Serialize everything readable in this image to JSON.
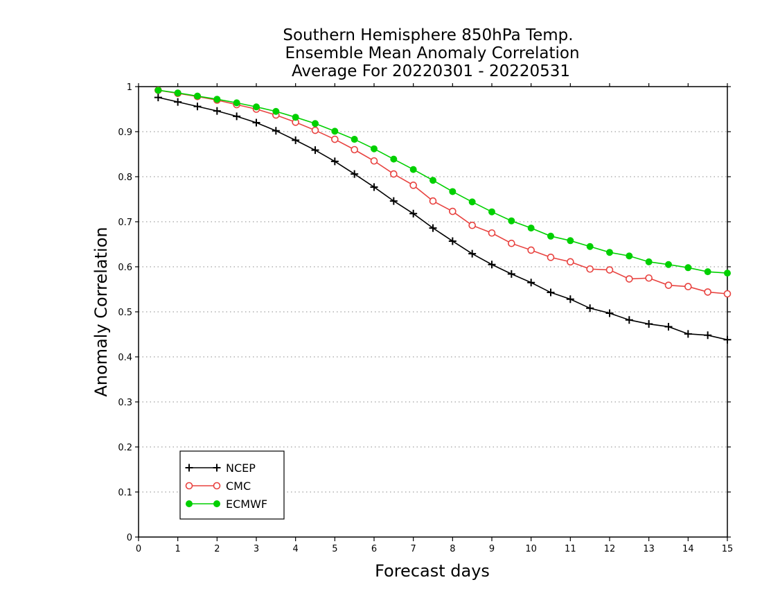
{
  "chart_data": {
    "type": "line",
    "title": [
      "Southern Hemisphere 850hPa Temp.",
      "Ensemble Mean Anomaly Correlation",
      "Average For 20220301 - 20220531"
    ],
    "xlabel": "Forecast days",
    "ylabel": "Anomaly Correlation",
    "xlim": [
      0,
      15
    ],
    "ylim": [
      0,
      1
    ],
    "xticks": [
      0,
      1,
      2,
      3,
      4,
      5,
      6,
      7,
      8,
      9,
      10,
      11,
      12,
      13,
      14,
      15
    ],
    "xtick_labels": [
      "0",
      "1",
      "2",
      "3",
      "4",
      "5",
      "6",
      "7",
      "8",
      "9",
      "10",
      "11",
      "12",
      "13",
      "14",
      "15"
    ],
    "yticks": [
      0,
      0.1,
      0.2,
      0.3,
      0.4,
      0.5,
      0.6,
      0.7,
      0.8,
      0.9,
      1
    ],
    "ytick_labels": [
      "0",
      "0.1",
      "0.2",
      "0.3",
      "0.4",
      "0.5",
      "0.6",
      "0.7",
      "0.8",
      "0.9",
      "1"
    ],
    "grid": "horizontal dotted",
    "legend_position": "bottom-left",
    "x": [
      0.5,
      1,
      1.5,
      2,
      2.5,
      3,
      3.5,
      4,
      4.5,
      5,
      5.5,
      6,
      6.5,
      7,
      7.5,
      8,
      8.5,
      9,
      9.5,
      10,
      10.5,
      11,
      11.5,
      12,
      12.5,
      13,
      13.5,
      14,
      14.5,
      15
    ],
    "series": [
      {
        "name": "NCEP",
        "color": "#000000",
        "marker": "plus",
        "values": [
          0.976,
          0.966,
          0.956,
          0.946,
          0.934,
          0.92,
          0.902,
          0.881,
          0.859,
          0.834,
          0.806,
          0.777,
          0.746,
          0.718,
          0.686,
          0.657,
          0.629,
          0.605,
          0.584,
          0.565,
          0.543,
          0.528,
          0.508,
          0.497,
          0.482,
          0.473,
          0.467,
          0.451,
          0.448,
          0.438
        ]
      },
      {
        "name": "CMC",
        "color": "#e8423f",
        "marker": "open-circle",
        "values": [
          0.992,
          0.985,
          0.978,
          0.97,
          0.96,
          0.95,
          0.937,
          0.921,
          0.903,
          0.883,
          0.86,
          0.835,
          0.806,
          0.781,
          0.746,
          0.723,
          0.692,
          0.675,
          0.652,
          0.637,
          0.621,
          0.611,
          0.595,
          0.593,
          0.573,
          0.575,
          0.559,
          0.556,
          0.544,
          0.54
        ]
      },
      {
        "name": "ECMWF",
        "color": "#00d000",
        "marker": "filled-circle",
        "values": [
          0.992,
          0.986,
          0.979,
          0.972,
          0.964,
          0.955,
          0.945,
          0.932,
          0.918,
          0.901,
          0.883,
          0.862,
          0.839,
          0.816,
          0.792,
          0.767,
          0.744,
          0.722,
          0.702,
          0.686,
          0.668,
          0.658,
          0.645,
          0.632,
          0.624,
          0.611,
          0.605,
          0.598,
          0.589,
          0.586
        ]
      }
    ]
  }
}
